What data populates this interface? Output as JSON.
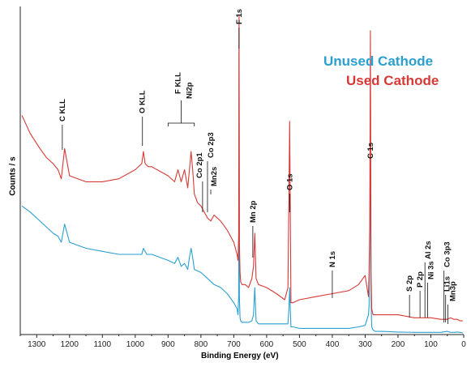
{
  "chart_data": {
    "type": "line",
    "title": "",
    "xlabel": "Binding Energy (eV)",
    "ylabel": "Counts / s",
    "xlim": [
      1350,
      0
    ],
    "x_reversed": true,
    "x_ticks": [
      1300,
      1200,
      1100,
      1000,
      900,
      800,
      700,
      600,
      500,
      400,
      300,
      200,
      100,
      0
    ],
    "grid": false,
    "legend_position": "top-right",
    "series": [
      {
        "name": "Unused Cathode",
        "color": "#2a9fd0",
        "x": [
          1345,
          1320,
          1290,
          1270,
          1250,
          1235,
          1225,
          1215,
          1200,
          1150,
          1100,
          1050,
          1000,
          980,
          975,
          965,
          950,
          900,
          880,
          870,
          860,
          850,
          840,
          835,
          830,
          825,
          820,
          800,
          780,
          760,
          740,
          720,
          700,
          690,
          687,
          685,
          684,
          683,
          681,
          679,
          675,
          665,
          655,
          645,
          640,
          636,
          632,
          625,
          600,
          570,
          545,
          535,
          532,
          530,
          528,
          526,
          520,
          500,
          450,
          400,
          350,
          320,
          300,
          290,
          288,
          286,
          284,
          282,
          280,
          276,
          270,
          250,
          200,
          150,
          100,
          70,
          50,
          40,
          30,
          20,
          10,
          3
        ],
        "y": [
          0.42,
          0.4,
          0.37,
          0.35,
          0.33,
          0.32,
          0.3,
          0.36,
          0.3,
          0.28,
          0.27,
          0.26,
          0.26,
          0.26,
          0.28,
          0.26,
          0.26,
          0.24,
          0.23,
          0.25,
          0.22,
          0.23,
          0.21,
          0.25,
          0.28,
          0.25,
          0.21,
          0.2,
          0.18,
          0.16,
          0.15,
          0.13,
          0.1,
          0.08,
          0.06,
          0.12,
          0.95,
          0.12,
          0.05,
          0.04,
          0.035,
          0.035,
          0.035,
          0.04,
          0.06,
          0.15,
          0.04,
          0.03,
          0.03,
          0.03,
          0.03,
          0.03,
          0.08,
          0.15,
          0.08,
          0.02,
          0.02,
          0.015,
          0.015,
          0.015,
          0.015,
          0.02,
          0.025,
          0.06,
          0.09,
          0.28,
          0.65,
          0.12,
          0.02,
          0.01,
          0.005,
          0.005,
          0.003,
          0.002,
          0.002,
          0.002,
          0.005,
          0.002,
          0.002,
          0.003,
          0.002,
          0.0
        ]
      },
      {
        "name": "Used Cathode",
        "color": "#d63a36",
        "x": [
          1345,
          1320,
          1290,
          1270,
          1250,
          1235,
          1225,
          1215,
          1200,
          1150,
          1100,
          1050,
          1000,
          980,
          975,
          970,
          960,
          950,
          900,
          880,
          870,
          860,
          850,
          840,
          835,
          830,
          825,
          820,
          810,
          800,
          790,
          780,
          770,
          760,
          750,
          740,
          720,
          700,
          690,
          687,
          685,
          684,
          683,
          681,
          679,
          675,
          665,
          655,
          645,
          640,
          636,
          632,
          625,
          600,
          570,
          545,
          535,
          532,
          530,
          528,
          526,
          520,
          500,
          450,
          400,
          350,
          320,
          300,
          290,
          288,
          286,
          284,
          282,
          280,
          276,
          270,
          250,
          200,
          150,
          100,
          70,
          50,
          40,
          30,
          20,
          10,
          3
        ],
        "y": [
          0.72,
          0.66,
          0.61,
          0.58,
          0.56,
          0.54,
          0.51,
          0.61,
          0.52,
          0.5,
          0.5,
          0.51,
          0.54,
          0.56,
          0.6,
          0.56,
          0.55,
          0.55,
          0.52,
          0.5,
          0.54,
          0.5,
          0.54,
          0.48,
          0.54,
          0.6,
          0.54,
          0.46,
          0.43,
          0.42,
          0.4,
          0.38,
          0.37,
          0.39,
          0.38,
          0.37,
          0.34,
          0.3,
          0.26,
          0.24,
          0.32,
          1.05,
          0.3,
          0.2,
          0.17,
          0.16,
          0.16,
          0.15,
          0.18,
          0.22,
          0.33,
          0.18,
          0.16,
          0.15,
          0.13,
          0.11,
          0.15,
          0.45,
          0.7,
          0.4,
          0.1,
          0.1,
          0.11,
          0.12,
          0.13,
          0.14,
          0.16,
          0.19,
          0.12,
          0.2,
          0.35,
          1.0,
          0.2,
          0.08,
          0.06,
          0.06,
          0.06,
          0.06,
          0.05,
          0.05,
          0.045,
          0.045,
          0.05,
          0.045,
          0.045,
          0.04,
          0.04
        ]
      }
    ],
    "annotations": [
      {
        "label": "C KLL",
        "x": 1222
      },
      {
        "label": "O KLL",
        "x": 978
      },
      {
        "label": "F KLL",
        "x": 860,
        "bracket": [
          900,
          820
        ]
      },
      {
        "label": "Ni2p",
        "x": 850
      },
      {
        "label": "Co 2p1",
        "x": 795
      },
      {
        "label": "Co 2p3",
        "x": 780
      },
      {
        "label": "Mn2s",
        "x": 770
      },
      {
        "label": "F 1s",
        "x": 684
      },
      {
        "label": "Mn 2p",
        "x": 642
      },
      {
        "label": "O 1s",
        "x": 530
      },
      {
        "label": "N 1s",
        "x": 400
      },
      {
        "label": "C 1s",
        "x": 284
      },
      {
        "label": "S 2p",
        "x": 165
      },
      {
        "label": "P 2p",
        "x": 133
      },
      {
        "label": "Al 2s",
        "x": 118
      },
      {
        "label": "Ni 3s",
        "x": 110
      },
      {
        "label": "Co 3p3",
        "x": 60
      },
      {
        "label": "Li1s",
        "x": 55
      },
      {
        "label": "Mn3p",
        "x": 48
      }
    ]
  },
  "legend": {
    "unused": "Unused Cathode",
    "used": "Used Cathode",
    "unused_color": "#2a9fd0",
    "used_color": "#d63a36"
  }
}
